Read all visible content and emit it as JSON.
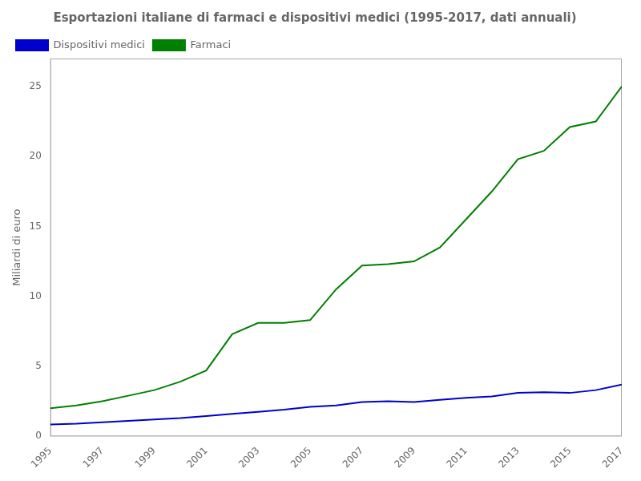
{
  "chart_data": {
    "type": "line",
    "title": "Esportazioni italiane di farmaci e dispositivi medici (1995-2017, dati annuali)",
    "y_label": "Miliardi di euro",
    "x": [
      1995,
      1996,
      1997,
      1998,
      1999,
      2000,
      2001,
      2002,
      2003,
      2004,
      2005,
      2006,
      2007,
      2008,
      2009,
      2010,
      2011,
      2012,
      2013,
      2014,
      2015,
      2016,
      2017
    ],
    "series": [
      {
        "name": "Dispositivi medici",
        "color": "#0000cc",
        "values": [
          0.85,
          0.9,
          1.0,
          1.1,
          1.2,
          1.3,
          1.45,
          1.6,
          1.75,
          1.9,
          2.1,
          2.2,
          2.45,
          2.5,
          2.45,
          2.6,
          2.75,
          2.85,
          3.1,
          3.15,
          3.1,
          3.3,
          3.7
        ]
      },
      {
        "name": "Farmaci",
        "color": "#008000",
        "values": [
          2.0,
          2.2,
          2.5,
          2.9,
          3.3,
          3.9,
          4.7,
          7.3,
          8.1,
          8.1,
          8.3,
          10.5,
          12.2,
          12.3,
          12.5,
          13.5,
          15.5,
          17.5,
          19.8,
          20.4,
          22.1,
          22.5,
          25.0
        ]
      }
    ],
    "xlim": [
      1995,
      2017
    ],
    "xticks": [
      1995,
      1997,
      1999,
      2001,
      2003,
      2005,
      2007,
      2009,
      2011,
      2013,
      2015,
      2017
    ],
    "ylim": [
      0,
      27
    ],
    "yticks": [
      0,
      5,
      10,
      15,
      20,
      25
    ],
    "grid": false,
    "legend": "upper left"
  }
}
